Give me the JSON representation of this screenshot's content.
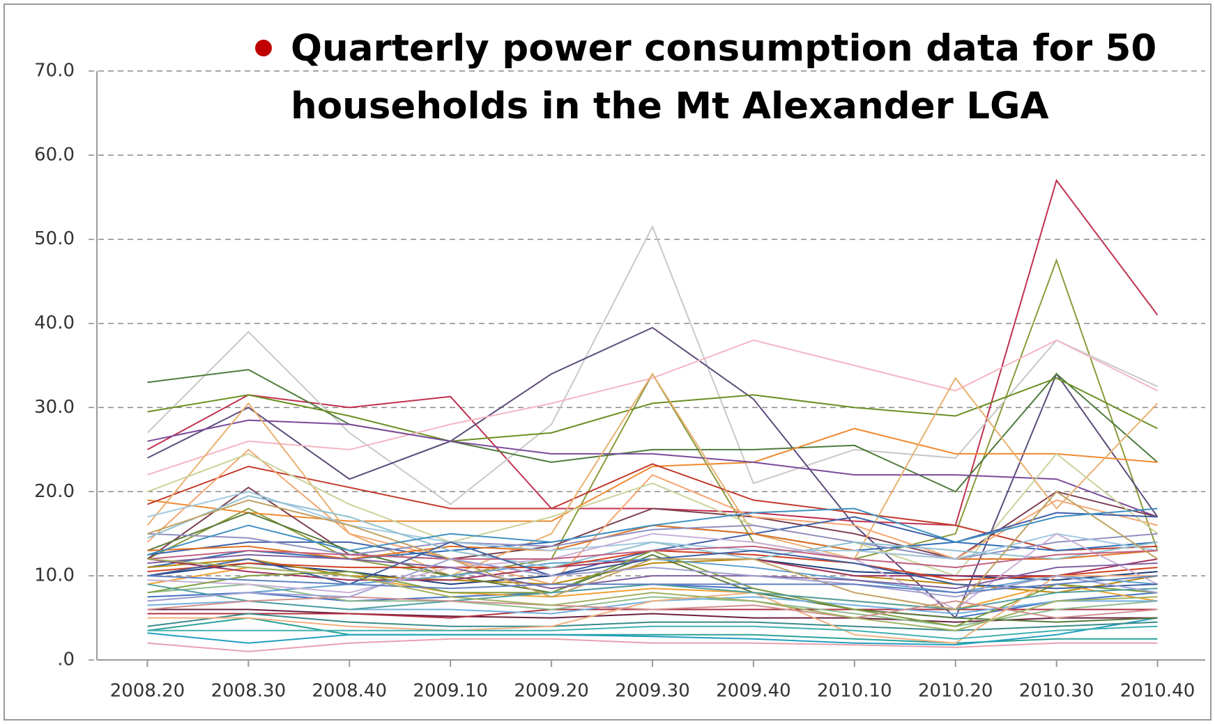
{
  "chart_data": {
    "type": "line",
    "title": "Quarterly power consumption data for 50 households in the Mt Alexander LGA",
    "categories": [
      "2008.20",
      "2008.30",
      "2008.40",
      "2009.10",
      "2009.20",
      "2009.30",
      "2009.40",
      "2010.10",
      "2010.20",
      "2010.30",
      "2010.40"
    ],
    "ylim": [
      0,
      70
    ],
    "yticks": [
      {
        "value": 0,
        "label": ".0"
      },
      {
        "value": 10,
        "label": "10.0"
      },
      {
        "value": 20,
        "label": "20.0"
      },
      {
        "value": 30,
        "label": "30.0"
      },
      {
        "value": 40,
        "label": "40.0"
      },
      {
        "value": 50,
        "label": "50.0"
      },
      {
        "value": 60,
        "label": "60.0"
      },
      {
        "value": 70,
        "label": "70.0"
      }
    ],
    "grid": true,
    "series": [
      {
        "color": "#C0304F",
        "values": [
          25,
          31.5,
          30,
          31.3,
          18,
          18,
          17.5,
          16.5,
          16,
          57,
          41
        ]
      },
      {
        "color": "#8A9A3B",
        "values": [
          12,
          18,
          12,
          10,
          12,
          34,
          14,
          12,
          15,
          47.5,
          13
        ]
      },
      {
        "color": "#C8C8C8",
        "values": [
          27,
          39,
          27,
          18.5,
          28,
          51.5,
          21,
          25,
          24,
          38,
          32.5
        ]
      },
      {
        "color": "#5B4A7A",
        "values": [
          24,
          30,
          21.5,
          26,
          34,
          39.5,
          31,
          16,
          5,
          34,
          17
        ]
      },
      {
        "color": "#4E7A3A",
        "values": [
          33,
          34.5,
          28,
          26,
          23.5,
          25,
          25,
          25.5,
          20,
          34,
          23.5
        ]
      },
      {
        "color": "#6B8E23",
        "values": [
          29.5,
          31.5,
          29,
          26,
          27,
          30.5,
          31.5,
          30,
          29,
          33.5,
          27.5
        ]
      },
      {
        "color": "#F4B6C2",
        "values": [
          22,
          26,
          25,
          28,
          30.5,
          33.5,
          38,
          35,
          32,
          38,
          32
        ]
      },
      {
        "color": "#F08A30",
        "values": [
          19,
          17.5,
          16.5,
          16.5,
          16.5,
          23,
          23.5,
          27.5,
          24.5,
          24.5,
          23.5
        ]
      },
      {
        "color": "#7A4A9A",
        "values": [
          26,
          28.5,
          28,
          26,
          24.5,
          24.5,
          23.5,
          22,
          22,
          21.5,
          17
        ]
      },
      {
        "color": "#C0392B",
        "values": [
          18.5,
          23,
          20.5,
          18,
          18,
          23.3,
          19,
          17.5,
          16,
          13,
          13.5
        ]
      },
      {
        "color": "#7B3F4F",
        "values": [
          12,
          20.5,
          12.5,
          12,
          13.5,
          18,
          17,
          15,
          12,
          20,
          17
        ]
      },
      {
        "color": "#E8B070",
        "values": [
          16,
          30.5,
          15,
          10,
          15,
          34,
          15,
          12,
          33.5,
          18,
          30.5
        ]
      },
      {
        "color": "#F5A570",
        "values": [
          14,
          25,
          15,
          12,
          9,
          22,
          17,
          16,
          12,
          19,
          16
        ]
      },
      {
        "color": "#C9D29A",
        "values": [
          20,
          24.5,
          18.5,
          14,
          17,
          21,
          16,
          14,
          10,
          24.5,
          15
        ]
      },
      {
        "color": "#3F5FA8",
        "values": [
          12.5,
          14,
          14,
          12,
          10,
          13,
          15,
          17,
          14,
          17.5,
          17
        ]
      },
      {
        "color": "#2E6EB5",
        "values": [
          11,
          13,
          12,
          13,
          14,
          16,
          15,
          13,
          14,
          13,
          14
        ]
      },
      {
        "color": "#1F3F7A",
        "values": [
          10,
          11.5,
          10.5,
          9,
          10,
          12,
          12,
          10.5,
          10,
          9.5,
          10.5
        ]
      },
      {
        "color": "#4472C4",
        "values": [
          7.5,
          8,
          7,
          7.5,
          8,
          9,
          8.5,
          6,
          5,
          7,
          8
        ]
      },
      {
        "color": "#6A1F3F",
        "values": [
          6,
          6,
          5.5,
          5.2,
          5,
          5.5,
          5,
          5,
          4.5,
          5,
          5
        ]
      },
      {
        "color": "#B03040",
        "values": [
          5.5,
          5.5,
          5.5,
          5,
          6,
          6,
          6,
          6,
          6,
          6,
          6
        ]
      },
      {
        "color": "#2AA198",
        "values": [
          3.5,
          5,
          3,
          3,
          3,
          3,
          3,
          2.5,
          2,
          2.5,
          2.5
        ]
      },
      {
        "color": "#20A0C0",
        "values": [
          3.2,
          2,
          3,
          3,
          3,
          2.8,
          2.5,
          2,
          1.8,
          3,
          5
        ]
      },
      {
        "color": "#E8A0B0",
        "values": [
          2,
          1,
          2,
          2.5,
          2.5,
          2,
          2,
          1.8,
          1.5,
          2,
          2
        ]
      },
      {
        "color": "#B8860B",
        "values": [
          11,
          12,
          10,
          9.5,
          9,
          11.5,
          12,
          10,
          9,
          8,
          10
        ]
      },
      {
        "color": "#F0A030",
        "values": [
          9,
          11,
          10,
          8,
          7.5,
          8.5,
          8,
          7,
          6,
          9,
          7
        ]
      },
      {
        "color": "#8FBC8F",
        "values": [
          8,
          9,
          7,
          7,
          6,
          7.5,
          7,
          5.5,
          4,
          6,
          7
        ]
      },
      {
        "color": "#5A7A3A",
        "values": [
          13,
          17.5,
          13,
          10,
          8,
          12.5,
          8,
          6,
          5,
          4.5,
          5
        ]
      },
      {
        "color": "#A03060",
        "values": [
          12,
          10.5,
          9.5,
          9.5,
          11,
          12,
          12,
          10,
          10,
          10,
          12
        ]
      },
      {
        "color": "#60A0D0",
        "values": [
          7,
          8,
          9,
          10,
          11.5,
          12,
          11,
          9.5,
          8,
          10,
          9
        ]
      },
      {
        "color": "#E07020",
        "values": [
          13,
          13.5,
          12,
          13.5,
          13,
          16,
          15,
          13,
          12,
          12,
          13
        ]
      },
      {
        "color": "#D04020",
        "values": [
          10.5,
          11.5,
          11,
          11,
          11,
          13,
          12.5,
          11.5,
          9.5,
          10,
          11
        ]
      },
      {
        "color": "#9090C0",
        "values": [
          15,
          14.5,
          12.5,
          14,
          13.5,
          15.5,
          16,
          14,
          12,
          14,
          15
        ]
      },
      {
        "color": "#70B0E0",
        "values": [
          6.5,
          7,
          6,
          6,
          5.5,
          7,
          7.5,
          6.5,
          5.5,
          7,
          7
        ]
      },
      {
        "color": "#3A8A8A",
        "values": [
          4,
          5.5,
          4.5,
          4,
          4,
          4.5,
          4.5,
          4,
          3.5,
          4,
          4.5
        ]
      },
      {
        "color": "#A0C8E0",
        "values": [
          17,
          20,
          16,
          14,
          13,
          14,
          13,
          13,
          12,
          15,
          13
        ]
      },
      {
        "color": "#90C0D0",
        "values": [
          14.5,
          19.5,
          17,
          13,
          11,
          14,
          12,
          14,
          13,
          12,
          14
        ]
      },
      {
        "color": "#C8B0D8",
        "values": [
          9.5,
          9,
          8,
          11,
          12,
          15,
          14,
          12,
          6,
          15,
          9
        ]
      },
      {
        "color": "#80A040",
        "values": [
          8,
          10,
          10.5,
          8,
          8,
          13,
          8.5,
          6,
          4,
          9,
          8
        ]
      },
      {
        "color": "#C06080",
        "values": [
          12,
          13,
          12.5,
          12,
          12,
          13,
          13.5,
          12,
          11,
          12.5,
          13
        ]
      },
      {
        "color": "#F0B080",
        "values": [
          5,
          5,
          4,
          3.5,
          4,
          7,
          8,
          3,
          2,
          10,
          10
        ]
      },
      {
        "color": "#4060A0",
        "values": [
          10,
          12,
          9,
          14,
          10,
          12,
          13,
          11.5,
          9,
          8.5,
          9
        ]
      },
      {
        "color": "#8060A0",
        "values": [
          11.5,
          12.5,
          12,
          11,
          8.5,
          10,
          10,
          9.5,
          8.5,
          11,
          11.5
        ]
      },
      {
        "color": "#50A0A0",
        "values": [
          9,
          7,
          6,
          7,
          8,
          9,
          8,
          7,
          6,
          8,
          8.5
        ]
      },
      {
        "color": "#D09090",
        "values": [
          6,
          7,
          7.5,
          7,
          6.5,
          6,
          6.5,
          5,
          7,
          5,
          6
        ]
      },
      {
        "color": "#40B0B0",
        "values": [
          3.5,
          3.5,
          3.5,
          3.5,
          3.5,
          4,
          4,
          3.5,
          2.5,
          3.5,
          4
        ]
      },
      {
        "color": "#C0A060",
        "values": [
          15,
          19,
          16,
          12,
          7.5,
          12,
          12,
          8,
          6,
          20,
          12
        ]
      },
      {
        "color": "#A0A0D0",
        "values": [
          7,
          8,
          7.5,
          12,
          10,
          11,
          10,
          9,
          7.5,
          10,
          8
        ]
      },
      {
        "color": "#6080C0",
        "values": [
          10,
          9.5,
          9,
          8.5,
          9,
          9,
          9,
          9,
          8,
          9,
          10
        ]
      },
      {
        "color": "#4090C0",
        "values": [
          12.5,
          16,
          13,
          15,
          14,
          16,
          17.5,
          18,
          14,
          17,
          18
        ]
      },
      {
        "color": "#A0B060",
        "values": [
          12,
          11,
          10,
          7.5,
          6.5,
          8,
          7,
          5,
          3.5,
          7,
          7.5
        ]
      }
    ]
  }
}
